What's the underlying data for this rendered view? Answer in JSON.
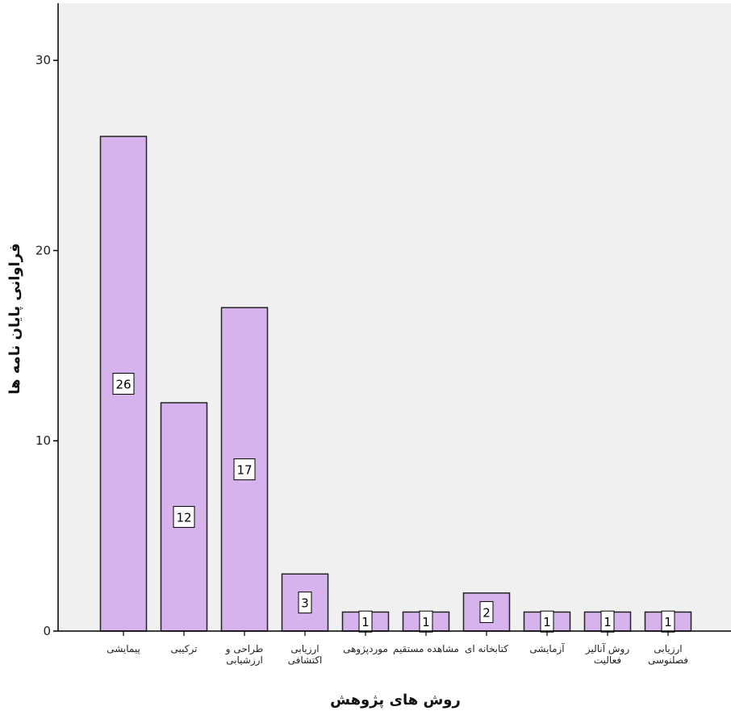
{
  "chart_data": {
    "type": "bar",
    "xlabel": "روش های پژوهش",
    "ylabel": "فراوانی پایان نامه ها",
    "ylim": [
      0,
      33
    ],
    "yticks": [
      0,
      10,
      20,
      30
    ],
    "grid": false,
    "categories": [
      [
        "پیمایشی"
      ],
      [
        "ترکیبی"
      ],
      [
        "طراحی و",
        "ارزشیابی"
      ],
      [
        "ارزیابی",
        "اکتشافی"
      ],
      [
        "موردپژوهی"
      ],
      [
        "مشاهده مستقیم"
      ],
      [
        "کتابخانه ای"
      ],
      [
        "آزمایشی"
      ],
      [
        "روش آنالیز",
        "فعالیت"
      ],
      [
        "ارزیابی",
        "فصلنوسی"
      ]
    ],
    "values": [
      26,
      12,
      17,
      3,
      1,
      1,
      2,
      1,
      1,
      1
    ],
    "colors": {
      "bar_fill": "#d6b3ec",
      "bar_stroke": "#222222",
      "plot_background": "#f0f0f0",
      "label_box": "#ffffff"
    }
  }
}
